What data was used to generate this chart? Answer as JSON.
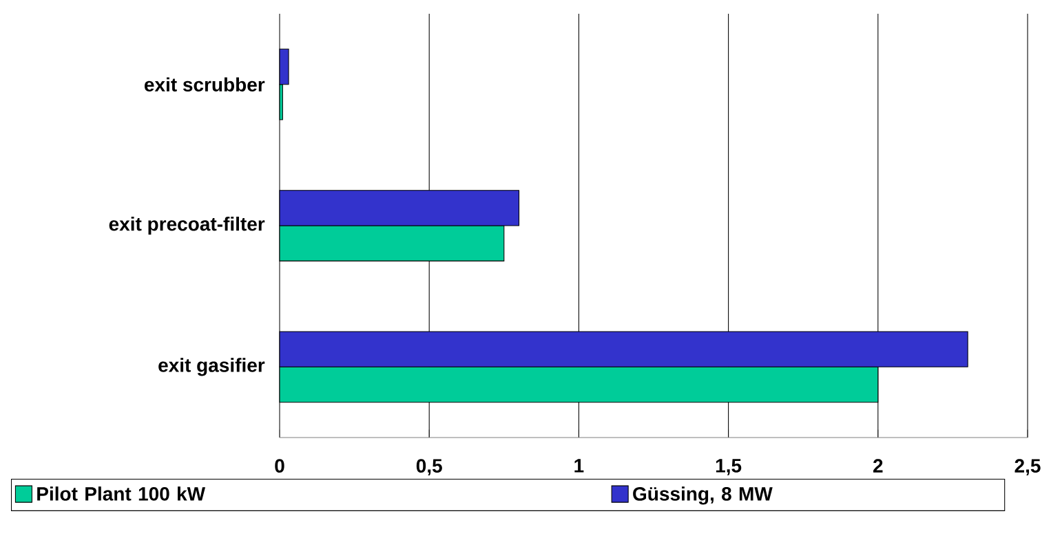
{
  "chart_data": {
    "type": "bar",
    "orientation": "horizontal",
    "categories": [
      "exit scrubber",
      "exit precoat-filter",
      "exit gasifier"
    ],
    "series": [
      {
        "name": "Pilot Plant 100 kW",
        "color": "#00cc99",
        "values": [
          0.01,
          0.75,
          2.0
        ]
      },
      {
        "name": "Güssing, 8 MW",
        "color": "#3333cc",
        "values": [
          0.03,
          0.8,
          2.3
        ]
      }
    ],
    "xlim": [
      0,
      2.5
    ],
    "xticks": [
      0,
      {
        "value": 0.5,
        "label": "0,5"
      },
      1,
      {
        "value": 1.5,
        "label": "1,5"
      },
      2,
      {
        "value": 2.5,
        "label": "2,5"
      }
    ],
    "grid": "x",
    "legend": "bottom"
  }
}
